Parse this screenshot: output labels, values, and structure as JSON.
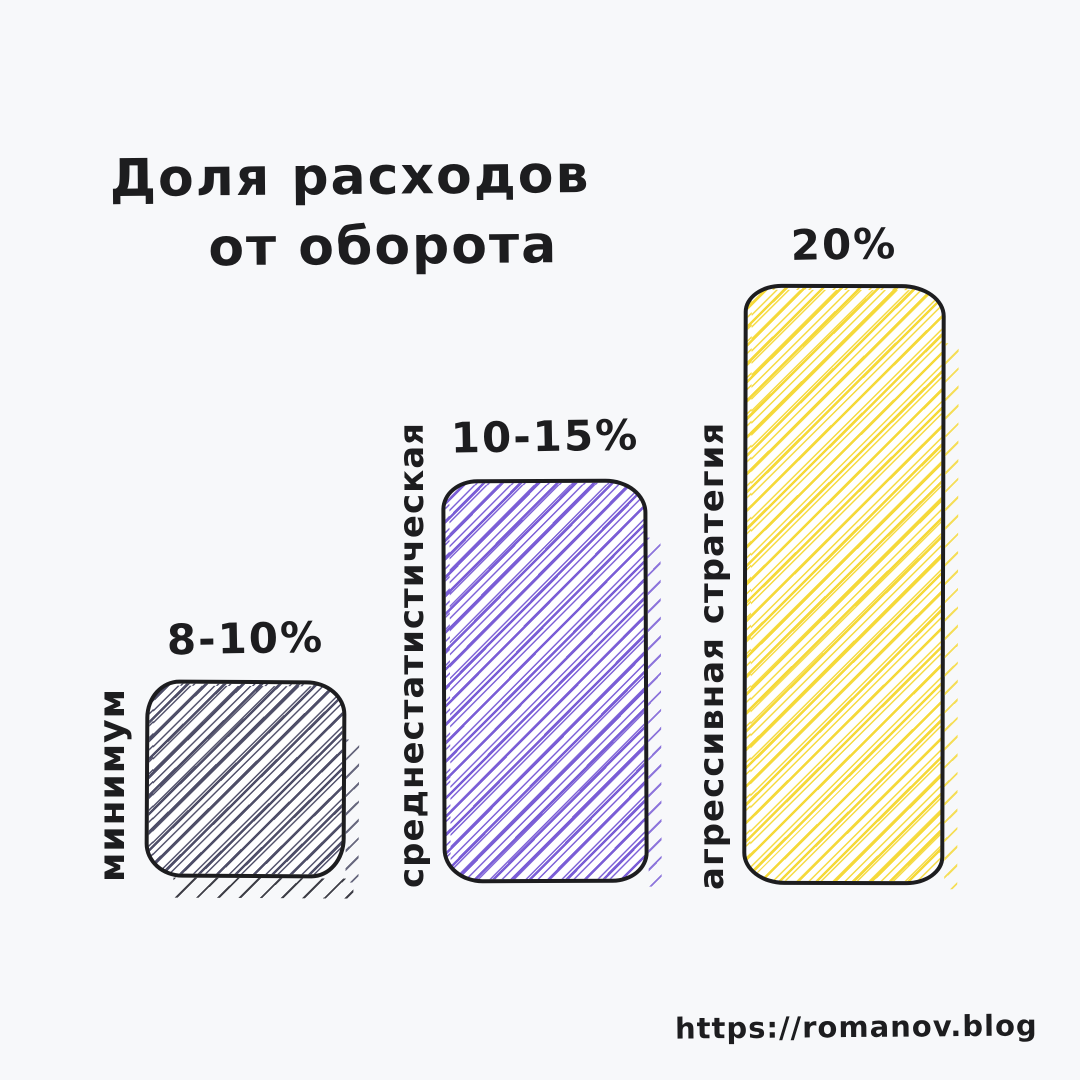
{
  "title": {
    "line1": "Доля расходов",
    "line2": "от оборота"
  },
  "chart_data": {
    "type": "bar",
    "title": "Доля расходов от оборота",
    "categories": [
      "минимум",
      "среднестатистическая",
      "агрессивная стратегия"
    ],
    "series": [
      {
        "name": "Доля расходов от оборота, %",
        "values": [
          9,
          12.5,
          20
        ],
        "value_ranges": [
          [
            8,
            10
          ],
          [
            10,
            15
          ],
          [
            20,
            20
          ]
        ]
      }
    ],
    "value_labels": [
      "8-10%",
      "10-15%",
      "20%"
    ],
    "xlabel": "",
    "ylabel": "",
    "ylim": [
      0,
      20
    ],
    "grid": false,
    "legend": false,
    "style": "hand-drawn hatched bars",
    "bar_colors": [
      "#4e4e68",
      "#7a5ed6",
      "#f5d93a"
    ]
  },
  "bars": [
    {
      "label": "минимум",
      "value_label": "8-10%",
      "hatch_color": "#4e4e68"
    },
    {
      "label": "среднестатистическая",
      "value_label": "10-15%",
      "hatch_color": "#7a5ed6"
    },
    {
      "label": "агрессивная стратегия",
      "value_label": "20%",
      "hatch_color": "#f5d93a"
    }
  ],
  "footer": {
    "url": "https://romanov.blog"
  },
  "colors": {
    "background": "#f7f8fa",
    "bar_fill": "#ffffff",
    "outline": "#1d1d1f",
    "text": "#1d1d1f"
  }
}
